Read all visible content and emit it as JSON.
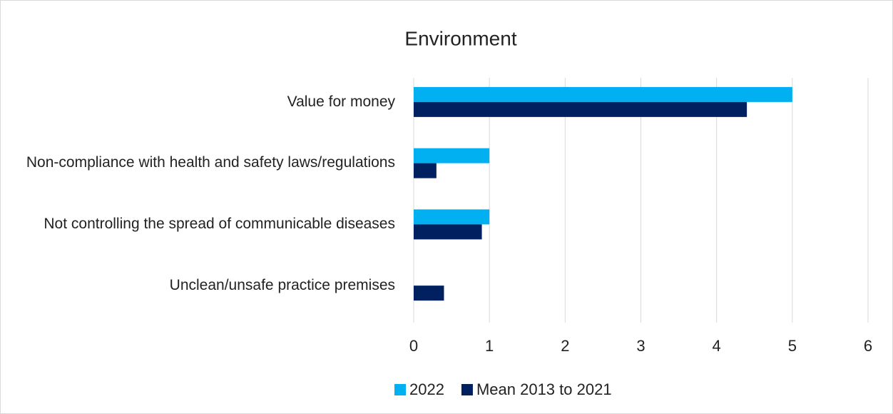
{
  "chart_data": {
    "type": "hbar",
    "title": "Environment",
    "categories": [
      "Value for money",
      "Non-compliance with health and safety laws/regulations",
      "Not controlling the spread of communicable diseases",
      "Unclean/unsafe practice premises"
    ],
    "series": [
      {
        "name": "2022",
        "color": "#00b0f0",
        "values": [
          5,
          1,
          1,
          0
        ]
      },
      {
        "name": "Mean 2013 to 2021",
        "color": "#002060",
        "values": [
          4.4,
          0.3,
          0.9,
          0.4
        ]
      }
    ],
    "xlim": [
      0,
      6
    ],
    "xticks": [
      0,
      1,
      2,
      3,
      4,
      5,
      6
    ],
    "grid": true,
    "legend": "bottom"
  }
}
